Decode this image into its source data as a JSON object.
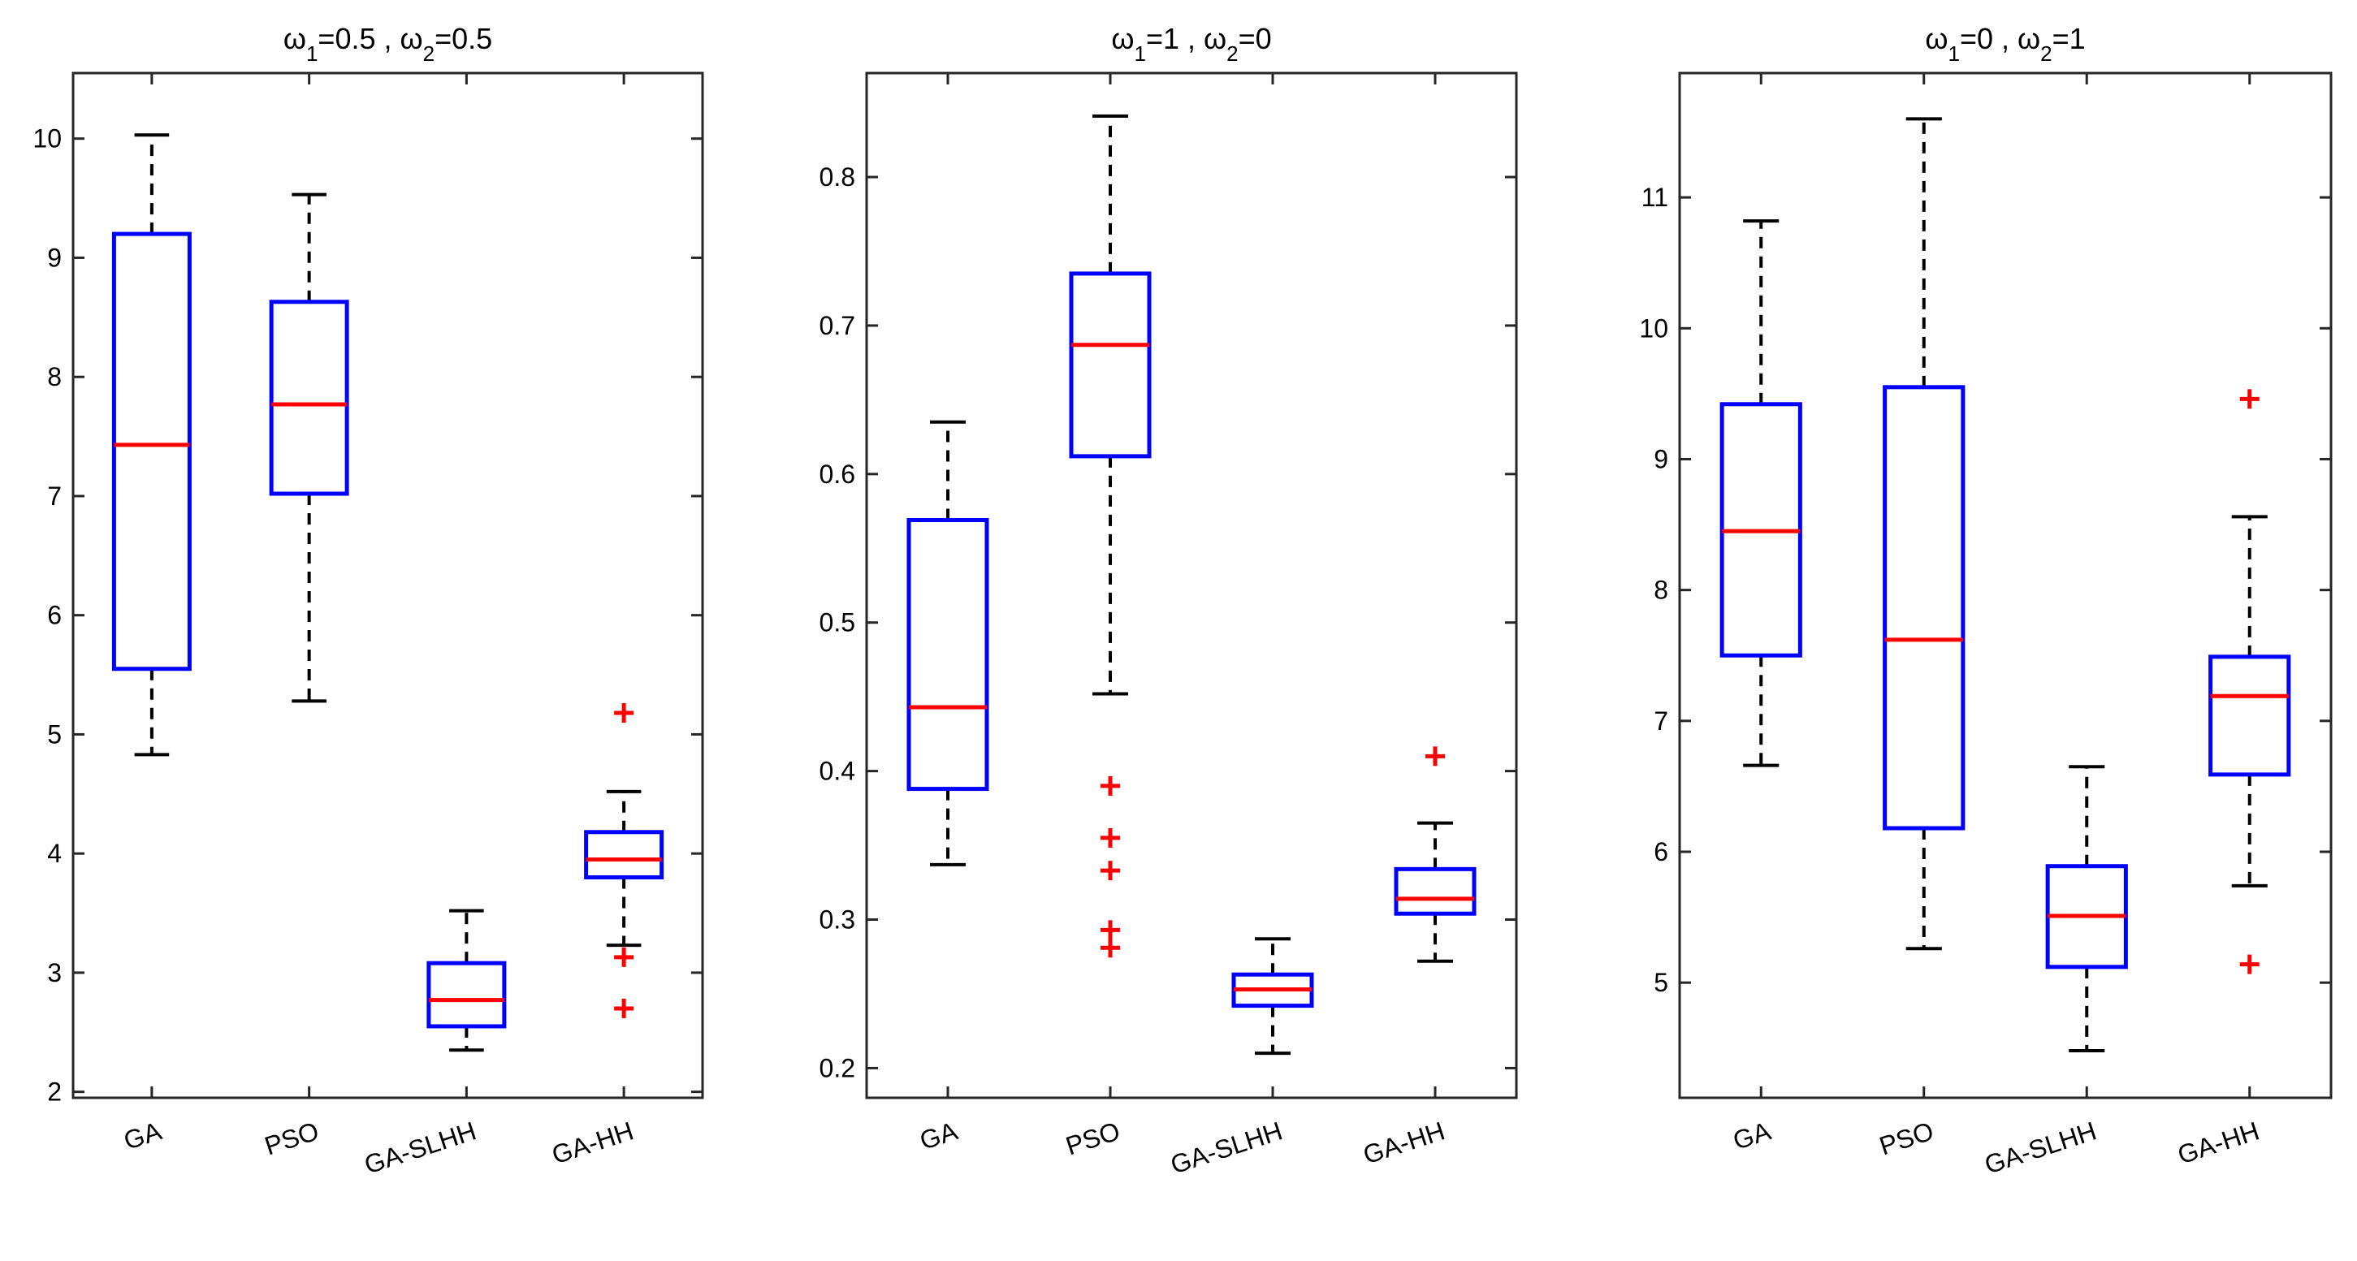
{
  "chart_data": [
    {
      "type": "boxplot",
      "title": {
        "a": "ω",
        "sub1": "1",
        "b": "=0.5 , ω",
        "sub2": "2",
        "c": "=0.5"
      },
      "categories": [
        "GA",
        "PSO",
        "GA-SLHH",
        "GA-HH"
      ],
      "ylim": [
        1.95,
        10.55
      ],
      "yticks": [
        2,
        3,
        4,
        5,
        6,
        7,
        8,
        9,
        10
      ],
      "boxes": [
        {
          "name": "GA",
          "whisker_low": 4.83,
          "q1": 5.55,
          "median": 7.43,
          "q3": 9.2,
          "whisker_high": 10.03,
          "outliers": []
        },
        {
          "name": "PSO",
          "whisker_low": 5.28,
          "q1": 7.02,
          "median": 7.77,
          "q3": 8.63,
          "whisker_high": 9.53,
          "outliers": []
        },
        {
          "name": "GA-SLHH",
          "whisker_low": 2.35,
          "q1": 2.55,
          "median": 2.77,
          "q3": 3.08,
          "whisker_high": 3.52,
          "outliers": []
        },
        {
          "name": "GA-HH",
          "whisker_low": 3.23,
          "q1": 3.8,
          "median": 3.95,
          "q3": 4.18,
          "whisker_high": 4.52,
          "outliers": [
            5.18,
            3.13,
            2.7
          ]
        }
      ]
    },
    {
      "type": "boxplot",
      "title": {
        "a": "ω",
        "sub1": "1",
        "b": "=1 , ω",
        "sub2": "2",
        "c": "=0"
      },
      "categories": [
        "GA",
        "PSO",
        "GA-SLHH",
        "GA-HH"
      ],
      "ylim": [
        0.18,
        0.87
      ],
      "yticks": [
        0.2,
        0.3,
        0.4,
        0.5,
        0.6,
        0.7,
        0.8
      ],
      "boxes": [
        {
          "name": "GA",
          "whisker_low": 0.337,
          "q1": 0.388,
          "median": 0.443,
          "q3": 0.569,
          "whisker_high": 0.635,
          "outliers": []
        },
        {
          "name": "PSO",
          "whisker_low": 0.452,
          "q1": 0.612,
          "median": 0.687,
          "q3": 0.735,
          "whisker_high": 0.841,
          "outliers": [
            0.39,
            0.355,
            0.333,
            0.293,
            0.281
          ]
        },
        {
          "name": "GA-SLHH",
          "whisker_low": 0.21,
          "q1": 0.242,
          "median": 0.253,
          "q3": 0.263,
          "whisker_high": 0.287,
          "outliers": []
        },
        {
          "name": "GA-HH",
          "whisker_low": 0.272,
          "q1": 0.304,
          "median": 0.314,
          "q3": 0.334,
          "whisker_high": 0.365,
          "outliers": [
            0.41
          ]
        }
      ]
    },
    {
      "type": "boxplot",
      "title": {
        "a": "ω",
        "sub1": "1",
        "b": "=0 , ω",
        "sub2": "2",
        "c": "=1"
      },
      "categories": [
        "GA",
        "PSO",
        "GA-SLHH",
        "GA-HH"
      ],
      "ylim": [
        4.12,
        11.95
      ],
      "yticks": [
        5,
        6,
        7,
        8,
        9,
        10,
        11
      ],
      "boxes": [
        {
          "name": "GA",
          "whisker_low": 6.66,
          "q1": 7.5,
          "median": 8.45,
          "q3": 9.42,
          "whisker_high": 10.82,
          "outliers": []
        },
        {
          "name": "PSO",
          "whisker_low": 5.26,
          "q1": 6.18,
          "median": 7.62,
          "q3": 9.55,
          "whisker_high": 11.6,
          "outliers": []
        },
        {
          "name": "GA-SLHH",
          "whisker_low": 4.48,
          "q1": 5.12,
          "median": 5.51,
          "q3": 5.89,
          "whisker_high": 6.65,
          "outliers": []
        },
        {
          "name": "GA-HH",
          "whisker_low": 5.74,
          "q1": 6.59,
          "median": 7.19,
          "q3": 7.49,
          "whisker_high": 8.56,
          "outliers": [
            9.46,
            5.14
          ]
        }
      ]
    }
  ],
  "colors": {
    "box": "#0000ff",
    "median": "#ff0000",
    "outlier": "#ff0000",
    "whisker": "#000000",
    "axis": "#262626"
  }
}
